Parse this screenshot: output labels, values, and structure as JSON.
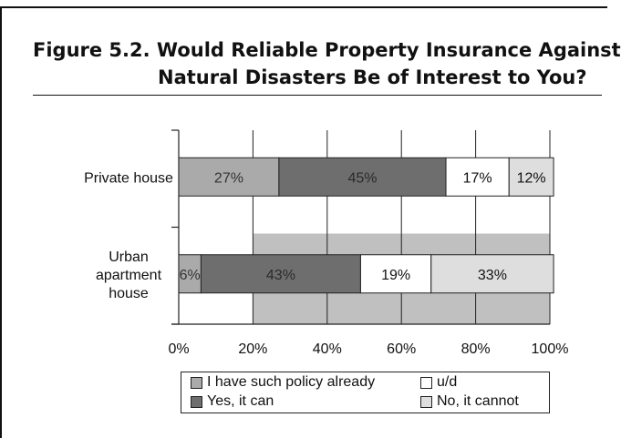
{
  "figure": {
    "title_line1": "Figure 5.2.  Would Reliable Property Insurance Against",
    "title_line2": "Natural Disasters Be of Interest to You?"
  },
  "chart_data": {
    "type": "bar",
    "orientation": "horizontal",
    "stacked": true,
    "percent_stacked": true,
    "categories": [
      "Private house",
      "Urban apartment house"
    ],
    "category_labels": [
      [
        "Private house"
      ],
      [
        "Urban",
        "apartment",
        "house"
      ]
    ],
    "series": [
      {
        "name": "I have such policy already",
        "values": [
          27,
          6
        ],
        "labels": [
          "27%",
          "6%"
        ],
        "color": "#aaaaaa",
        "text_color": "#333333"
      },
      {
        "name": "Yes, it can",
        "values": [
          45,
          43
        ],
        "labels": [
          "45%",
          "43%"
        ],
        "color": "#6e6e6e",
        "text_color": "#2a2a2a"
      },
      {
        "name": "u/d",
        "values": [
          17,
          19
        ],
        "labels": [
          "17%",
          "19%"
        ],
        "color": "#ffffff",
        "text_color": "#111111"
      },
      {
        "name": "No, it cannot",
        "values": [
          12,
          33
        ],
        "labels": [
          "12%",
          "33%"
        ],
        "color": "#dedede",
        "text_color": "#111111"
      }
    ],
    "xlim": [
      0,
      100
    ],
    "x_ticks": [
      0,
      20,
      40,
      60,
      80,
      100
    ],
    "x_tick_labels": [
      "0%",
      "20%",
      "40%",
      "60%",
      "80%",
      "100%"
    ],
    "gridlines": true,
    "background": "#c0c0c0",
    "legend": {
      "position": "bottom",
      "rows": [
        [
          "I have such policy already",
          "u/d"
        ],
        [
          "Yes, it can",
          "No, it cannot"
        ]
      ]
    }
  }
}
